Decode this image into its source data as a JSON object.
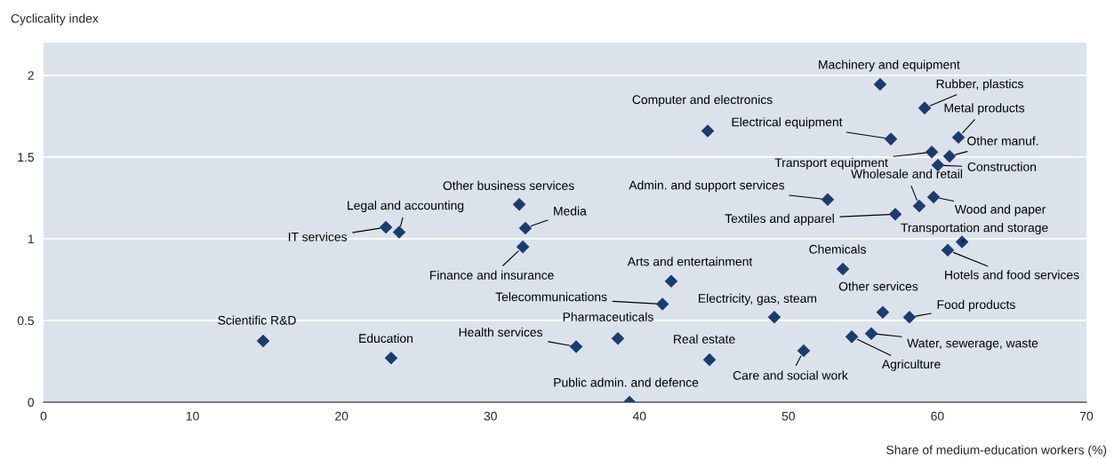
{
  "chart_data": {
    "type": "scatter",
    "xlabel": "Share of medium-education workers (%)",
    "ylabel": "Cyclicality index",
    "xlim": [
      0,
      70
    ],
    "xticks": [
      0,
      10,
      20,
      30,
      40,
      50,
      60,
      70
    ],
    "ylim": [
      0,
      2.2
    ],
    "yticks": [
      0,
      0.5,
      1,
      1.5,
      2
    ],
    "grid": "y",
    "marker": "diamond",
    "series": [
      {
        "color": "#1b3c6e",
        "x": [
          14.74,
          23.33,
          22.98,
          23.87,
          31.93,
          32.34,
          32.17,
          35.75,
          38.55,
          39.33,
          41.54,
          42.13,
          44.58,
          44.7,
          49.05,
          51.02,
          52.63,
          53.65,
          54.25,
          55.56,
          56.33,
          56.15,
          56.87,
          57.17,
          58.12,
          58.78,
          59.14,
          59.62,
          59.74,
          60.03,
          60.81,
          61.41,
          60.69,
          61.65
        ],
        "values": [
          0.375,
          0.27,
          1.07,
          1.04,
          1.21,
          1.065,
          0.95,
          0.34,
          0.39,
          0,
          0.6,
          0.74,
          1.66,
          0.26,
          0.52,
          0.315,
          1.24,
          0.815,
          0.4,
          0.42,
          0.55,
          1.945,
          1.61,
          1.15,
          0.52,
          1.2,
          1.8,
          1.53,
          1.255,
          1.45,
          1.505,
          1.62,
          0.93,
          0.98
        ]
      }
    ],
    "annotations": [
      {
        "text": "Scientific R&D",
        "x": 14.74,
        "y": 0.375
      },
      {
        "text": "Education",
        "x": 23.33,
        "y": 0.27
      },
      {
        "text": "IT services",
        "x": 22.98,
        "y": 1.07
      },
      {
        "text": "Legal and accounting",
        "x": 23.87,
        "y": 1.04
      },
      {
        "text": "Other business services",
        "x": 31.93,
        "y": 1.21
      },
      {
        "text": "Media",
        "x": 32.34,
        "y": 1.065
      },
      {
        "text": "Finance and insurance",
        "x": 32.17,
        "y": 0.95
      },
      {
        "text": "Health services",
        "x": 35.75,
        "y": 0.34
      },
      {
        "text": "Pharmaceuticals",
        "x": 38.55,
        "y": 0.39
      },
      {
        "text": "Public admin. and defence",
        "x": 39.33,
        "y": 0
      },
      {
        "text": "Telecommunications",
        "x": 41.54,
        "y": 0.6
      },
      {
        "text": "Arts and entertainment",
        "x": 42.13,
        "y": 0.74
      },
      {
        "text": "Computer and electronics",
        "x": 44.58,
        "y": 1.66
      },
      {
        "text": "Real estate",
        "x": 44.7,
        "y": 0.26
      },
      {
        "text": "Electricity, gas, steam",
        "x": 49.05,
        "y": 0.52
      },
      {
        "text": "Care and social work",
        "x": 51.02,
        "y": 0.315
      },
      {
        "text": "Admin. and support services",
        "x": 52.63,
        "y": 1.24
      },
      {
        "text": "Chemicals",
        "x": 53.65,
        "y": 0.815
      },
      {
        "text": "Agriculture",
        "x": 54.25,
        "y": 0.4
      },
      {
        "text": "Water, sewerage, waste",
        "x": 55.56,
        "y": 0.42
      },
      {
        "text": "Other services",
        "x": 56.33,
        "y": 0.55
      },
      {
        "text": "Machinery and equipment",
        "x": 56.15,
        "y": 1.945
      },
      {
        "text": "Electrical equipment",
        "x": 56.87,
        "y": 1.61
      },
      {
        "text": "Textiles and apparel",
        "x": 57.17,
        "y": 1.15
      },
      {
        "text": "Food products",
        "x": 58.12,
        "y": 0.52
      },
      {
        "text": "Wholesale and retail",
        "x": 58.78,
        "y": 1.2
      },
      {
        "text": "Rubber, plastics",
        "x": 59.14,
        "y": 1.8
      },
      {
        "text": "Transport equipment",
        "x": 59.62,
        "y": 1.53
      },
      {
        "text": "Wood and paper",
        "x": 59.74,
        "y": 1.255
      },
      {
        "text": "Construction",
        "x": 60.03,
        "y": 1.45
      },
      {
        "text": "Other manuf.",
        "x": 60.81,
        "y": 1.505
      },
      {
        "text": "Metal products",
        "x": 61.41,
        "y": 1.62
      },
      {
        "text": "Hotels and food services",
        "x": 60.69,
        "y": 0.93
      },
      {
        "text": "Transportation and storage",
        "x": 61.65,
        "y": 0.98
      }
    ]
  }
}
